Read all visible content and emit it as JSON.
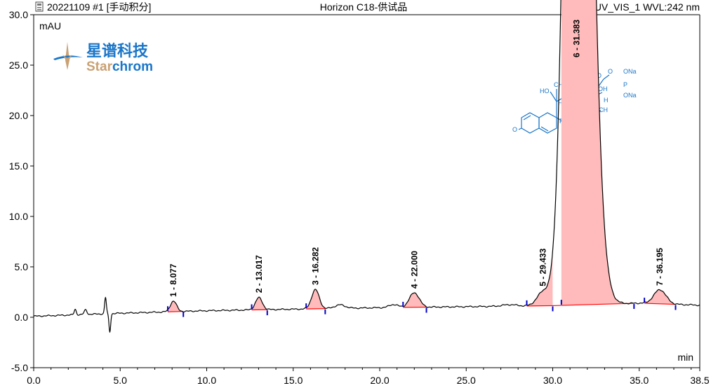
{
  "header": {
    "left": "20221109 #1 [手动积分]",
    "center": "Horizon  C18-供试品",
    "right": "UV_VIS_1 WVL:242 nm"
  },
  "logo": {
    "cn": "星谱科技",
    "en_a": "Star",
    "en_b": "chrom"
  },
  "icons": {
    "header_icon": "report-icon"
  },
  "colors": {
    "trace": "#000000",
    "baseline": "#ff0000",
    "marker": "#0000cc",
    "peak_fill": "#ffbbbb",
    "structure": "#1a76c9"
  },
  "structure_labels": {
    "ho": "HO",
    "oh": "OH",
    "f": "F",
    "o": "O",
    "h1": "H",
    "h2": "H",
    "h3": "H",
    "ch3a": "CH",
    "ch3b": "CH",
    "ch3c": "CH",
    "p": "P",
    "ona1": "ONa",
    "ona2": "ONa",
    "ester_o": "O",
    "keto_o": "O"
  },
  "chart_data": {
    "type": "line",
    "title": "Horizon  C18-供试品",
    "xlabel": "min",
    "ylabel": "mAU",
    "xlim": [
      0,
      38.5
    ],
    "ylim": [
      -5,
      30
    ],
    "xticks": [
      "0.0",
      "5.0",
      "10.0",
      "15.0",
      "20.0",
      "25.0",
      "30.0",
      "35.0",
      "38.5"
    ],
    "yticks": [
      "-5.0",
      "0.0",
      "5.0",
      "10.0",
      "15.0",
      "20.0",
      "25.0",
      "30.0"
    ],
    "grid": false,
    "peaks": [
      {
        "label": "1 - 8.077",
        "rt": 8.077,
        "height": 1.05,
        "width": 0.18,
        "start": 7.75,
        "end": 8.65
      },
      {
        "label": "2 - 13.017",
        "rt": 13.017,
        "height": 1.2,
        "width": 0.2,
        "start": 12.6,
        "end": 13.5
      },
      {
        "label": "3 - 16.282",
        "rt": 16.282,
        "height": 1.9,
        "width": 0.22,
        "start": 15.75,
        "end": 16.85
      },
      {
        "label": "4 - 22.000",
        "rt": 22.0,
        "height": 1.45,
        "width": 0.28,
        "start": 21.35,
        "end": 22.7
      },
      {
        "label": "5 - 29.433",
        "rt": 29.433,
        "height": 1.3,
        "width": 0.35,
        "start": 28.5,
        "end": 30.0
      },
      {
        "label": "6 - 31.383",
        "rt": 31.383,
        "height": 120,
        "width": 0.55,
        "start": 30.5,
        "end": 34.7
      },
      {
        "label": "7 - 36.195",
        "rt": 36.195,
        "height": 1.4,
        "width": 0.35,
        "start": 35.3,
        "end": 37.1
      }
    ],
    "baseline_points": [
      [
        0,
        0.1
      ],
      [
        5,
        0.4
      ],
      [
        10,
        0.65
      ],
      [
        15,
        0.8
      ],
      [
        20,
        0.95
      ],
      [
        25,
        1.05
      ],
      [
        30,
        1.15
      ],
      [
        35,
        1.4
      ],
      [
        38.5,
        1.2
      ]
    ],
    "disturbances": [
      [
        2.4,
        0.55,
        0.06
      ],
      [
        3.0,
        0.45,
        0.08
      ],
      [
        4.15,
        1.6,
        0.05
      ],
      [
        4.4,
        -1.8,
        0.05
      ],
      [
        17.7,
        0.35,
        0.3
      ],
      [
        20.8,
        0.3,
        0.25
      ],
      [
        27.5,
        0.15,
        0.4
      ]
    ]
  }
}
